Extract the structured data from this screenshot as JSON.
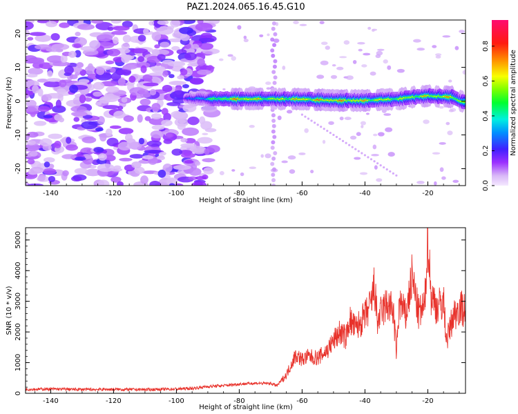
{
  "title": "PAZ1.2024.065.16.45.G10",
  "chart_data": [
    {
      "type": "heatmap",
      "xlabel": "Height of straight line (km)",
      "ylabel": "Frequency (Hz)",
      "xlim": [
        -148,
        -8
      ],
      "ylim": [
        -25,
        24
      ],
      "xticks": [
        -140,
        -120,
        -100,
        -80,
        -60,
        -40,
        -20
      ],
      "xtick_labels": [
        "-140",
        "-120",
        "-100",
        "-80",
        "-60",
        "-40",
        "-20"
      ],
      "yticks": [
        -20,
        -10,
        0,
        10,
        20
      ],
      "ytick_labels": [
        "-20",
        "-10",
        "0",
        "10",
        "20"
      ],
      "colorbar": {
        "label": "Normalized spectral amplitude",
        "range": [
          0,
          0.95
        ],
        "ticks": [
          0.0,
          0.2,
          0.4,
          0.6,
          0.8
        ],
        "tick_labels": [
          "0.0",
          "0.2",
          "0.4",
          "0.6",
          "0.8"
        ],
        "colormap": "gist_rainbow_r"
      },
      "features": {
        "noise_region_x": [
          -148,
          -91
        ],
        "noise_amplitude_range": [
          0.05,
          0.22
        ],
        "ridge": [
          {
            "x": -97,
            "y": 0.8,
            "amp": 0.25
          },
          {
            "x": -90,
            "y": 0.7,
            "amp": 0.5
          },
          {
            "x": -80,
            "y": 0.6,
            "amp": 0.85
          },
          {
            "x": -70,
            "y": 0.6,
            "amp": 0.7
          },
          {
            "x": -60,
            "y": 0.6,
            "amp": 0.8
          },
          {
            "x": -50,
            "y": 0.2,
            "amp": 0.85
          },
          {
            "x": -40,
            "y": 0.2,
            "amp": 0.8
          },
          {
            "x": -30,
            "y": 0.6,
            "amp": 0.7
          },
          {
            "x": -20,
            "y": 1.6,
            "amp": 0.75
          },
          {
            "x": -12,
            "y": 1.2,
            "amp": 0.8
          },
          {
            "x": -8,
            "y": -0.5,
            "amp": 0.7
          }
        ]
      }
    },
    {
      "type": "line",
      "xlabel": "Height of straight line (km)",
      "ylabel": "SNR (10 * v/v)",
      "xlim": [
        -148,
        -8
      ],
      "ylim": [
        0,
        5400
      ],
      "xticks": [
        -140,
        -120,
        -100,
        -80,
        -60,
        -40,
        -20
      ],
      "xtick_labels": [
        "-140",
        "-120",
        "-100",
        "-80",
        "-60",
        "-40",
        "-20"
      ],
      "yticks": [
        0,
        1000,
        2000,
        3000,
        4000,
        5000
      ],
      "ytick_labels": [
        "0",
        "1000",
        "2000",
        "3000",
        "4000",
        "5000"
      ],
      "series": [
        {
          "color": "#e8312a",
          "x": [
            -148,
            -140,
            -130,
            -120,
            -110,
            -100,
            -95,
            -90,
            -85,
            -80,
            -75,
            -70,
            -68,
            -65,
            -63,
            -62,
            -60,
            -58,
            -55,
            -52,
            -50,
            -48,
            -46,
            -45,
            -43,
            -40,
            -38,
            -37,
            -36,
            -35,
            -33,
            -31,
            -30,
            -29,
            -27,
            -25,
            -23,
            -21,
            -20,
            -19,
            -17,
            -15,
            -14,
            -12,
            -10,
            -8
          ],
          "y": [
            130,
            140,
            125,
            130,
            120,
            140,
            160,
            220,
            250,
            300,
            330,
            320,
            250,
            600,
            1050,
            1250,
            1100,
            1200,
            1150,
            1400,
            1700,
            2000,
            1800,
            2400,
            2100,
            2500,
            2900,
            3500,
            2300,
            2600,
            2900,
            2700,
            1300,
            3000,
            2500,
            3800,
            2600,
            2800,
            5300,
            3200,
            2800,
            3000,
            1700,
            2500,
            2800,
            2750
          ]
        }
      ]
    }
  ]
}
